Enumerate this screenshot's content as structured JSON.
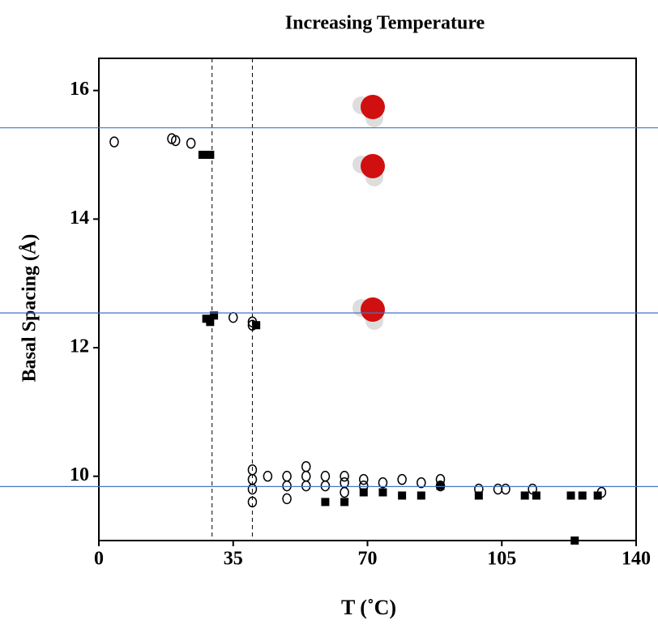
{
  "chart_data": {
    "type": "scatter",
    "title": "Increasing Temperature",
    "x_label": "T (˚C)",
    "y_label": "Basal Spacing (Å)",
    "xlim": [
      0,
      140
    ],
    "ylim": [
      9,
      16.5
    ],
    "xticks": [
      0,
      35,
      70,
      105,
      140
    ],
    "yticks": [
      10,
      12,
      14,
      16
    ],
    "vlines": [
      29.5,
      40
    ],
    "hlines": [
      15.42,
      12.54,
      9.84
    ],
    "hline_color": "#4472c4",
    "series": [
      {
        "marker": "circle",
        "color": "#000000",
        "x": [
          4,
          19,
          20,
          24,
          35,
          40,
          40,
          40,
          40,
          40,
          40,
          44,
          49,
          49,
          49,
          54,
          54,
          54,
          59,
          59,
          64,
          64,
          64,
          69,
          69,
          74,
          79,
          84,
          89,
          89,
          99,
          104,
          106,
          113,
          131
        ],
        "values": [
          15.2,
          15.25,
          15.22,
          15.18,
          12.47,
          12.4,
          10.1,
          9.95,
          9.8,
          9.6,
          12.35,
          10.0,
          10.0,
          9.85,
          9.65,
          10.15,
          10.0,
          9.85,
          10.0,
          9.85,
          10.0,
          9.9,
          9.75,
          9.95,
          9.85,
          9.9,
          9.95,
          9.9,
          9.95,
          9.85,
          9.8,
          9.8,
          9.8,
          9.8,
          9.75
        ]
      },
      {
        "marker": "square",
        "color": "#000000",
        "x": [
          27,
          29,
          28,
          29,
          30,
          41,
          59,
          64,
          69,
          74,
          79,
          84,
          89,
          99,
          111,
          114,
          123,
          126,
          130,
          124
        ],
        "values": [
          15.0,
          15.0,
          12.45,
          12.4,
          12.5,
          12.35,
          9.6,
          9.6,
          9.75,
          9.75,
          9.7,
          9.7,
          9.85,
          9.7,
          9.7,
          9.7,
          9.7,
          9.7,
          9.7,
          9.0
        ]
      }
    ]
  }
}
